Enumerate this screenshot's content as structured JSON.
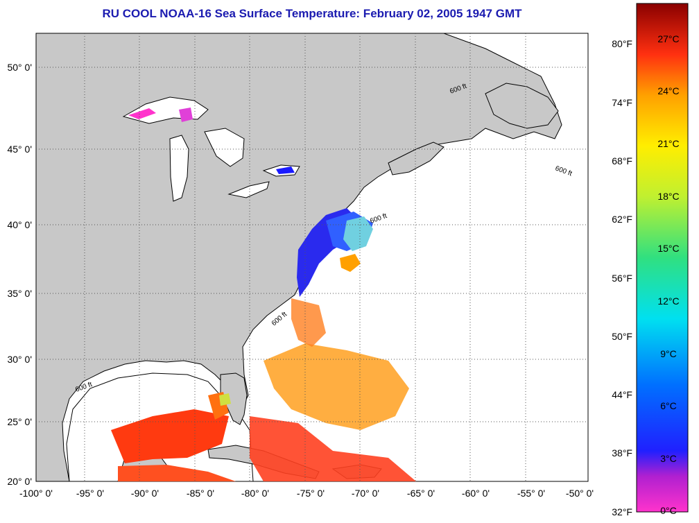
{
  "title": "RU COOL  NOAA-16  Sea Surface Temperature:  February 02, 2005 1947 GMT",
  "map": {
    "lon_labels": [
      "-100° 0'",
      "-95° 0'",
      "-90° 0'",
      "-85° 0'",
      "-80° 0'",
      "-75° 0'",
      "-70° 0'",
      "-65° 0'",
      "-60° 0'",
      "-55° 0'",
      "-50° 0'"
    ],
    "lat_labels": [
      "50° 0'",
      "45° 0'",
      "40° 0'",
      "35° 0'",
      "30° 0'",
      "25° 0'",
      "20° 0'"
    ],
    "isobath_label": "600 ft",
    "land_color": "#c8c8c8",
    "water_color": "#ffffff"
  },
  "colorbar": {
    "fahrenheit_labels": [
      "80°F",
      "74°F",
      "68°F",
      "62°F",
      "56°F",
      "50°F",
      "44°F",
      "38°F",
      "32°F"
    ],
    "celsius_labels": [
      "27°C",
      "24°C",
      "21°C",
      "18°C",
      "15°C",
      "12°C",
      "9°C",
      "6°C",
      "3°C",
      "0°C"
    ]
  }
}
